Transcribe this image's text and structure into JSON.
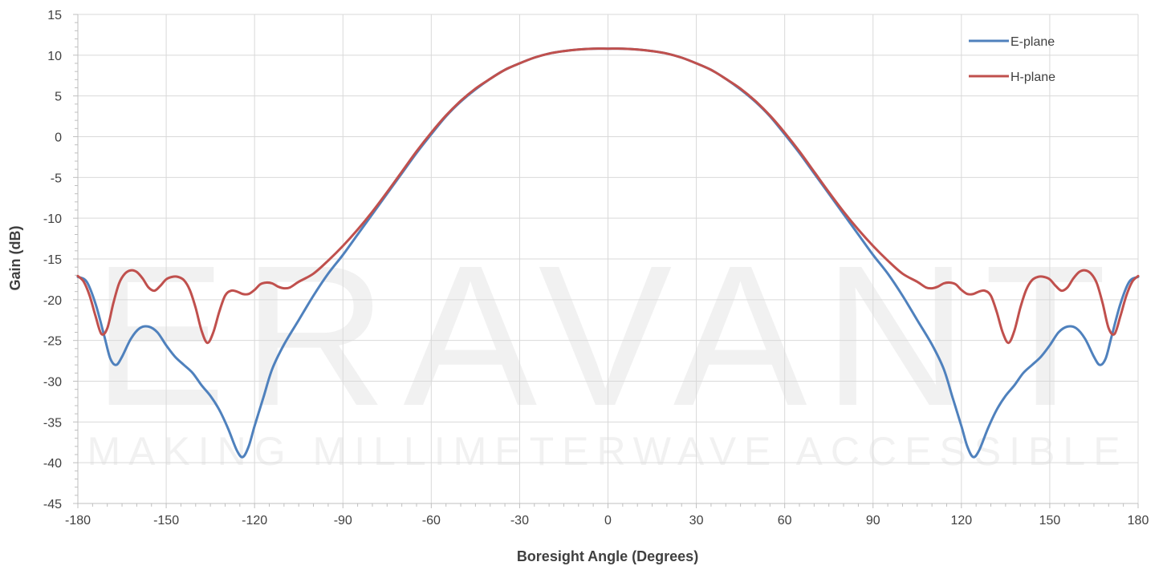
{
  "chart_data": {
    "type": "line",
    "xlabel": "Boresight Angle (Degrees)",
    "ylabel": "Gain (dB)",
    "xlim": [
      -180,
      180
    ],
    "ylim": [
      -45,
      15
    ],
    "xticks": [
      -180,
      -150,
      -120,
      -90,
      -60,
      -30,
      0,
      30,
      60,
      90,
      120,
      150,
      180
    ],
    "yticks": [
      -45,
      -40,
      -35,
      -30,
      -25,
      -20,
      -15,
      -10,
      -5,
      0,
      5,
      10,
      15
    ],
    "grid": true,
    "legend_position": "top-right",
    "watermark": {
      "logo_text": "ERAVANT",
      "tagline": "MAKING MILLIMETERWAVE ACCESSIBLE"
    },
    "series": [
      {
        "name": "E-plane",
        "color": "#4F81BD",
        "points": [
          [
            -180,
            -17.2
          ],
          [
            -177,
            -17.8
          ],
          [
            -174,
            -20.5
          ],
          [
            -171,
            -24.5
          ],
          [
            -169,
            -27.2
          ],
          [
            -167,
            -28.0
          ],
          [
            -165,
            -27.0
          ],
          [
            -162,
            -24.8
          ],
          [
            -159,
            -23.5
          ],
          [
            -156,
            -23.3
          ],
          [
            -153,
            -24.0
          ],
          [
            -150,
            -25.6
          ],
          [
            -147,
            -27.0
          ],
          [
            -144,
            -28.0
          ],
          [
            -141,
            -29.0
          ],
          [
            -138,
            -30.5
          ],
          [
            -135,
            -31.8
          ],
          [
            -132,
            -33.5
          ],
          [
            -129,
            -35.8
          ],
          [
            -126,
            -38.5
          ],
          [
            -124,
            -39.3
          ],
          [
            -122,
            -38.0
          ],
          [
            -120,
            -35.5
          ],
          [
            -117,
            -32.0
          ],
          [
            -114,
            -28.5
          ],
          [
            -110,
            -25.5
          ],
          [
            -105,
            -22.5
          ],
          [
            -100,
            -19.5
          ],
          [
            -95,
            -16.8
          ],
          [
            -90,
            -14.5
          ],
          [
            -85,
            -12.0
          ],
          [
            -80,
            -9.5
          ],
          [
            -75,
            -7.0
          ],
          [
            -70,
            -4.5
          ],
          [
            -65,
            -2.0
          ],
          [
            -60,
            0.3
          ],
          [
            -55,
            2.5
          ],
          [
            -50,
            4.3
          ],
          [
            -45,
            5.8
          ],
          [
            -40,
            7.1
          ],
          [
            -35,
            8.2
          ],
          [
            -30,
            9.0
          ],
          [
            -25,
            9.7
          ],
          [
            -20,
            10.2
          ],
          [
            -15,
            10.5
          ],
          [
            -10,
            10.7
          ],
          [
            -5,
            10.8
          ],
          [
            0,
            10.8
          ],
          [
            5,
            10.8
          ],
          [
            10,
            10.7
          ],
          [
            15,
            10.5
          ],
          [
            20,
            10.2
          ],
          [
            25,
            9.7
          ],
          [
            30,
            9.0
          ],
          [
            35,
            8.2
          ],
          [
            40,
            7.1
          ],
          [
            45,
            5.8
          ],
          [
            50,
            4.3
          ],
          [
            55,
            2.5
          ],
          [
            60,
            0.3
          ],
          [
            65,
            -2.0
          ],
          [
            70,
            -4.5
          ],
          [
            75,
            -7.0
          ],
          [
            80,
            -9.5
          ],
          [
            85,
            -12.0
          ],
          [
            90,
            -14.5
          ],
          [
            95,
            -16.8
          ],
          [
            100,
            -19.5
          ],
          [
            105,
            -22.5
          ],
          [
            110,
            -25.5
          ],
          [
            114,
            -28.5
          ],
          [
            117,
            -32.0
          ],
          [
            120,
            -35.5
          ],
          [
            122,
            -38.0
          ],
          [
            124,
            -39.3
          ],
          [
            126,
            -38.5
          ],
          [
            129,
            -35.8
          ],
          [
            132,
            -33.5
          ],
          [
            135,
            -31.8
          ],
          [
            138,
            -30.5
          ],
          [
            141,
            -29.0
          ],
          [
            144,
            -28.0
          ],
          [
            147,
            -27.0
          ],
          [
            150,
            -25.6
          ],
          [
            153,
            -24.0
          ],
          [
            156,
            -23.3
          ],
          [
            159,
            -23.5
          ],
          [
            162,
            -24.8
          ],
          [
            165,
            -27.0
          ],
          [
            167,
            -28.0
          ],
          [
            169,
            -27.2
          ],
          [
            171,
            -24.5
          ],
          [
            174,
            -20.5
          ],
          [
            177,
            -17.8
          ],
          [
            180,
            -17.2
          ]
        ]
      },
      {
        "name": "H-plane",
        "color": "#C0504D",
        "points": [
          [
            -180,
            -17.1
          ],
          [
            -178,
            -17.8
          ],
          [
            -176,
            -19.5
          ],
          [
            -174,
            -22.0
          ],
          [
            -172,
            -24.2
          ],
          [
            -170,
            -23.5
          ],
          [
            -168,
            -20.5
          ],
          [
            -166,
            -18.0
          ],
          [
            -164,
            -16.8
          ],
          [
            -162,
            -16.4
          ],
          [
            -160,
            -16.6
          ],
          [
            -158,
            -17.4
          ],
          [
            -156,
            -18.5
          ],
          [
            -154,
            -18.9
          ],
          [
            -152,
            -18.3
          ],
          [
            -150,
            -17.5
          ],
          [
            -148,
            -17.2
          ],
          [
            -146,
            -17.2
          ],
          [
            -144,
            -17.6
          ],
          [
            -142,
            -18.8
          ],
          [
            -140,
            -21.0
          ],
          [
            -138,
            -23.8
          ],
          [
            -136,
            -25.3
          ],
          [
            -134,
            -24.0
          ],
          [
            -132,
            -21.5
          ],
          [
            -130,
            -19.5
          ],
          [
            -128,
            -18.9
          ],
          [
            -126,
            -19.0
          ],
          [
            -124,
            -19.3
          ],
          [
            -122,
            -19.3
          ],
          [
            -120,
            -18.8
          ],
          [
            -118,
            -18.1
          ],
          [
            -116,
            -17.9
          ],
          [
            -114,
            -18.0
          ],
          [
            -112,
            -18.4
          ],
          [
            -110,
            -18.6
          ],
          [
            -108,
            -18.5
          ],
          [
            -105,
            -17.8
          ],
          [
            -100,
            -16.8
          ],
          [
            -95,
            -15.2
          ],
          [
            -90,
            -13.4
          ],
          [
            -85,
            -11.4
          ],
          [
            -80,
            -9.2
          ],
          [
            -75,
            -6.8
          ],
          [
            -70,
            -4.3
          ],
          [
            -65,
            -1.8
          ],
          [
            -60,
            0.5
          ],
          [
            -55,
            2.6
          ],
          [
            -50,
            4.4
          ],
          [
            -45,
            5.9
          ],
          [
            -40,
            7.1
          ],
          [
            -35,
            8.2
          ],
          [
            -30,
            9.0
          ],
          [
            -25,
            9.7
          ],
          [
            -20,
            10.2
          ],
          [
            -15,
            10.5
          ],
          [
            -10,
            10.7
          ],
          [
            -5,
            10.8
          ],
          [
            0,
            10.8
          ],
          [
            5,
            10.8
          ],
          [
            10,
            10.7
          ],
          [
            15,
            10.5
          ],
          [
            20,
            10.2
          ],
          [
            25,
            9.7
          ],
          [
            30,
            9.0
          ],
          [
            35,
            8.2
          ],
          [
            40,
            7.1
          ],
          [
            45,
            5.9
          ],
          [
            50,
            4.4
          ],
          [
            55,
            2.6
          ],
          [
            60,
            0.5
          ],
          [
            65,
            -1.8
          ],
          [
            70,
            -4.3
          ],
          [
            75,
            -6.8
          ],
          [
            80,
            -9.2
          ],
          [
            85,
            -11.4
          ],
          [
            90,
            -13.4
          ],
          [
            95,
            -15.2
          ],
          [
            100,
            -16.8
          ],
          [
            105,
            -17.8
          ],
          [
            108,
            -18.5
          ],
          [
            110,
            -18.6
          ],
          [
            112,
            -18.4
          ],
          [
            114,
            -18.0
          ],
          [
            116,
            -17.9
          ],
          [
            118,
            -18.1
          ],
          [
            120,
            -18.8
          ],
          [
            122,
            -19.3
          ],
          [
            124,
            -19.3
          ],
          [
            126,
            -19.0
          ],
          [
            128,
            -18.9
          ],
          [
            130,
            -19.5
          ],
          [
            132,
            -21.5
          ],
          [
            134,
            -24.0
          ],
          [
            136,
            -25.3
          ],
          [
            138,
            -23.8
          ],
          [
            140,
            -21.0
          ],
          [
            142,
            -18.8
          ],
          [
            144,
            -17.6
          ],
          [
            146,
            -17.2
          ],
          [
            148,
            -17.2
          ],
          [
            150,
            -17.5
          ],
          [
            152,
            -18.3
          ],
          [
            154,
            -18.9
          ],
          [
            156,
            -18.5
          ],
          [
            158,
            -17.4
          ],
          [
            160,
            -16.6
          ],
          [
            162,
            -16.4
          ],
          [
            164,
            -16.8
          ],
          [
            166,
            -18.0
          ],
          [
            168,
            -20.5
          ],
          [
            170,
            -23.5
          ],
          [
            172,
            -24.2
          ],
          [
            174,
            -22.0
          ],
          [
            176,
            -19.5
          ],
          [
            178,
            -17.8
          ],
          [
            180,
            -17.1
          ]
        ]
      }
    ]
  }
}
